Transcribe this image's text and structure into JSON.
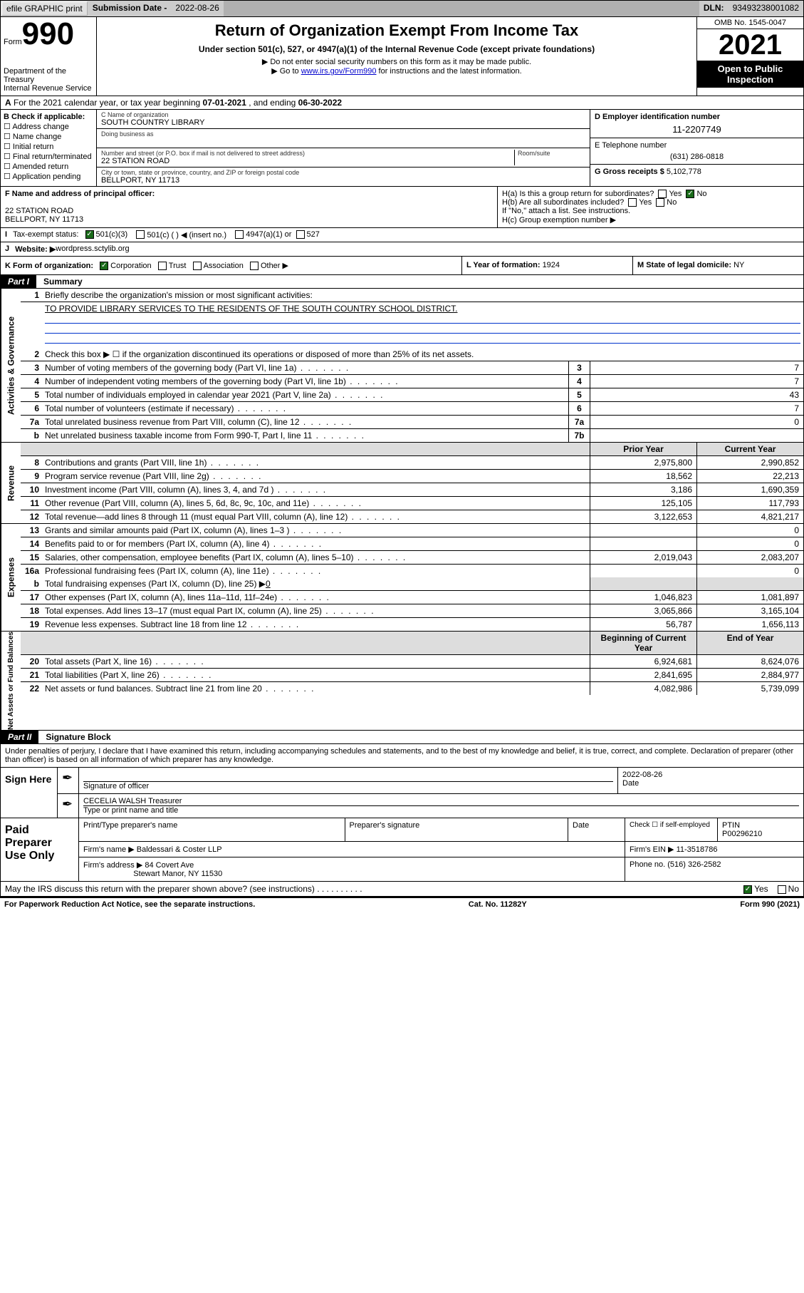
{
  "topbar": {
    "efile": "efile GRAPHIC print",
    "sub_lbl": "Submission Date - ",
    "sub_val": "2022-08-26",
    "dln_lbl": "DLN: ",
    "dln_val": "93493238001082"
  },
  "header": {
    "form_word": "Form",
    "form_num": "990",
    "dept": "Department of the Treasury",
    "irs": "Internal Revenue Service",
    "title": "Return of Organization Exempt From Income Tax",
    "sub": "Under section 501(c), 527, or 4947(a)(1) of the Internal Revenue Code (except private foundations)",
    "note1": "Do not enter social security numbers on this form as it may be made public.",
    "note2_pre": "Go to ",
    "note2_link": "www.irs.gov/Form990",
    "note2_post": " for instructions and the latest information.",
    "omb": "OMB No. 1545-0047",
    "year": "2021",
    "open": "Open to Public Inspection"
  },
  "rowA": {
    "text": "For the 2021 calendar year, or tax year beginning ",
    "begin": "07-01-2021",
    "mid": " , and ending ",
    "end": "06-30-2022"
  },
  "blockB": {
    "title": "B Check if applicable:",
    "opts": [
      "Address change",
      "Name change",
      "Initial return",
      "Final return/terminated",
      "Amended return",
      "Application pending"
    ]
  },
  "blockC": {
    "name_lbl": "C Name of organization",
    "name": "SOUTH COUNTRY LIBRARY",
    "dba_lbl": "Doing business as",
    "addr_lbl": "Number and street (or P.O. box if mail is not delivered to street address)",
    "room_lbl": "Room/suite",
    "addr": "22 STATION ROAD",
    "city_lbl": "City or town, state or province, country, and ZIP or foreign postal code",
    "city": "BELLPORT, NY  11713"
  },
  "blockD": {
    "lbl": "D Employer identification number",
    "val": "11-2207749"
  },
  "blockE": {
    "lbl": "E Telephone number",
    "val": "(631) 286-0818"
  },
  "blockG": {
    "lbl": "G Gross receipts $ ",
    "val": "5,102,778"
  },
  "blockF": {
    "lbl": "F Name and address of principal officer:",
    "line1": "22 STATION ROAD",
    "line2": "BELLPORT, NY  11713"
  },
  "blockH": {
    "ha": "H(a)  Is this a group return for subordinates?",
    "ha_yes": "Yes",
    "ha_no": "No",
    "hb": "H(b)  Are all subordinates included?",
    "hb_yes": "Yes",
    "hb_no": "No",
    "hb_note": "If \"No,\" attach a list. See instructions.",
    "hc": "H(c)  Group exemption number ▶"
  },
  "rowI": {
    "lbl": "I",
    "text": "Tax-exempt status:",
    "opt1": "501(c)(3)",
    "opt2": "501(c) (  ) ◀ (insert no.)",
    "opt3": "4947(a)(1) or",
    "opt4": "527"
  },
  "rowJ": {
    "lbl": "J",
    "text": "Website: ▶ ",
    "val": "wordpress.sctylib.org"
  },
  "rowK": {
    "pre": "K Form of organization:",
    "o1": "Corporation",
    "o2": "Trust",
    "o3": "Association",
    "o4": "Other ▶",
    "l_lbl": "L Year of formation: ",
    "l_val": "1924",
    "m_lbl": "M State of legal domicile: ",
    "m_val": "NY"
  },
  "part1": {
    "tag": "Part I",
    "title": "Summary"
  },
  "sec_gov": {
    "label": "Activities & Governance",
    "l1": "Briefly describe the organization's mission or most significant activities:",
    "l1v": "TO PROVIDE LIBRARY SERVICES TO THE RESIDENTS OF THE SOUTH COUNTRY SCHOOL DISTRICT.",
    "l2": "Check this box ▶ ☐  if the organization discontinued its operations or disposed of more than 25% of its net assets.",
    "rows": [
      {
        "n": "3",
        "t": "Number of voting members of the governing body (Part VI, line 1a)",
        "box": "3",
        "v": "7"
      },
      {
        "n": "4",
        "t": "Number of independent voting members of the governing body (Part VI, line 1b)",
        "box": "4",
        "v": "7"
      },
      {
        "n": "5",
        "t": "Total number of individuals employed in calendar year 2021 (Part V, line 2a)",
        "box": "5",
        "v": "43"
      },
      {
        "n": "6",
        "t": "Total number of volunteers (estimate if necessary)",
        "box": "6",
        "v": "7"
      },
      {
        "n": "7a",
        "t": "Total unrelated business revenue from Part VIII, column (C), line 12",
        "box": "7a",
        "v": "0"
      },
      {
        "n": "b",
        "t": "Net unrelated business taxable income from Form 990-T, Part I, line 11",
        "box": "7b",
        "v": ""
      }
    ]
  },
  "colhdr": {
    "prior": "Prior Year",
    "current": "Current Year"
  },
  "sec_rev": {
    "label": "Revenue",
    "rows": [
      {
        "n": "8",
        "t": "Contributions and grants (Part VIII, line 1h)",
        "v1": "2,975,800",
        "v2": "2,990,852"
      },
      {
        "n": "9",
        "t": "Program service revenue (Part VIII, line 2g)",
        "v1": "18,562",
        "v2": "22,213"
      },
      {
        "n": "10",
        "t": "Investment income (Part VIII, column (A), lines 3, 4, and 7d )",
        "v1": "3,186",
        "v2": "1,690,359"
      },
      {
        "n": "11",
        "t": "Other revenue (Part VIII, column (A), lines 5, 6d, 8c, 9c, 10c, and 11e)",
        "v1": "125,105",
        "v2": "117,793"
      },
      {
        "n": "12",
        "t": "Total revenue—add lines 8 through 11 (must equal Part VIII, column (A), line 12)",
        "v1": "3,122,653",
        "v2": "4,821,217"
      }
    ]
  },
  "sec_exp": {
    "label": "Expenses",
    "rows": [
      {
        "n": "13",
        "t": "Grants and similar amounts paid (Part IX, column (A), lines 1–3 )",
        "v1": "",
        "v2": "0"
      },
      {
        "n": "14",
        "t": "Benefits paid to or for members (Part IX, column (A), line 4)",
        "v1": "",
        "v2": "0"
      },
      {
        "n": "15",
        "t": "Salaries, other compensation, employee benefits (Part IX, column (A), lines 5–10)",
        "v1": "2,019,043",
        "v2": "2,083,207"
      },
      {
        "n": "16a",
        "t": "Professional fundraising fees (Part IX, column (A), line 11e)",
        "v1": "",
        "v2": "0"
      }
    ],
    "row_b": {
      "n": "b",
      "t": "Total fundraising expenses (Part IX, column (D), line 25) ▶",
      "v": "0"
    },
    "rows2": [
      {
        "n": "17",
        "t": "Other expenses (Part IX, column (A), lines 11a–11d, 11f–24e)",
        "v1": "1,046,823",
        "v2": "1,081,897"
      },
      {
        "n": "18",
        "t": "Total expenses. Add lines 13–17 (must equal Part IX, column (A), line 25)",
        "v1": "3,065,866",
        "v2": "3,165,104"
      },
      {
        "n": "19",
        "t": "Revenue less expenses. Subtract line 18 from line 12",
        "v1": "56,787",
        "v2": "1,656,113"
      }
    ]
  },
  "sec_net": {
    "label": "Net Assets or Fund Balances",
    "hdr1": "Beginning of Current Year",
    "hdr2": "End of Year",
    "rows": [
      {
        "n": "20",
        "t": "Total assets (Part X, line 16)",
        "v1": "6,924,681",
        "v2": "8,624,076"
      },
      {
        "n": "21",
        "t": "Total liabilities (Part X, line 26)",
        "v1": "2,841,695",
        "v2": "2,884,977"
      },
      {
        "n": "22",
        "t": "Net assets or fund balances. Subtract line 21 from line 20",
        "v1": "4,082,986",
        "v2": "5,739,099"
      }
    ]
  },
  "part2": {
    "tag": "Part II",
    "title": "Signature Block"
  },
  "decl": "Under penalties of perjury, I declare that I have examined this return, including accompanying schedules and statements, and to the best of my knowledge and belief, it is true, correct, and complete. Declaration of preparer (other than officer) is based on all information of which preparer has any knowledge.",
  "sign": {
    "lbl": "Sign Here",
    "sig_lbl": "Signature of officer",
    "date_lbl": "Date",
    "date_val": "2022-08-26",
    "name": "CECELIA WALSH  Treasurer",
    "name_lbl": "Type or print name and title"
  },
  "prep": {
    "lbl": "Paid Preparer Use Only",
    "h1": "Print/Type preparer's name",
    "h2": "Preparer's signature",
    "h3": "Date",
    "h4": "Check ☐ if self-employed",
    "h5_lbl": "PTIN",
    "h5_val": "P00296210",
    "firm_lbl": "Firm's name    ▶ ",
    "firm": "Baldessari & Coster LLP",
    "ein_lbl": "Firm's EIN ▶ ",
    "ein": "11-3518786",
    "addr_lbl": "Firm's address ▶ ",
    "addr1": "84 Covert Ave",
    "addr2": "Stewart Manor, NY  11530",
    "phone_lbl": "Phone no. ",
    "phone": "(516) 326-2582"
  },
  "may": {
    "text": "May the IRS discuss this return with the preparer shown above? (see instructions)",
    "yes": "Yes",
    "no": "No"
  },
  "foot": {
    "l": "For Paperwork Reduction Act Notice, see the separate instructions.",
    "m": "Cat. No. 11282Y",
    "r": "Form 990 (2021)"
  }
}
